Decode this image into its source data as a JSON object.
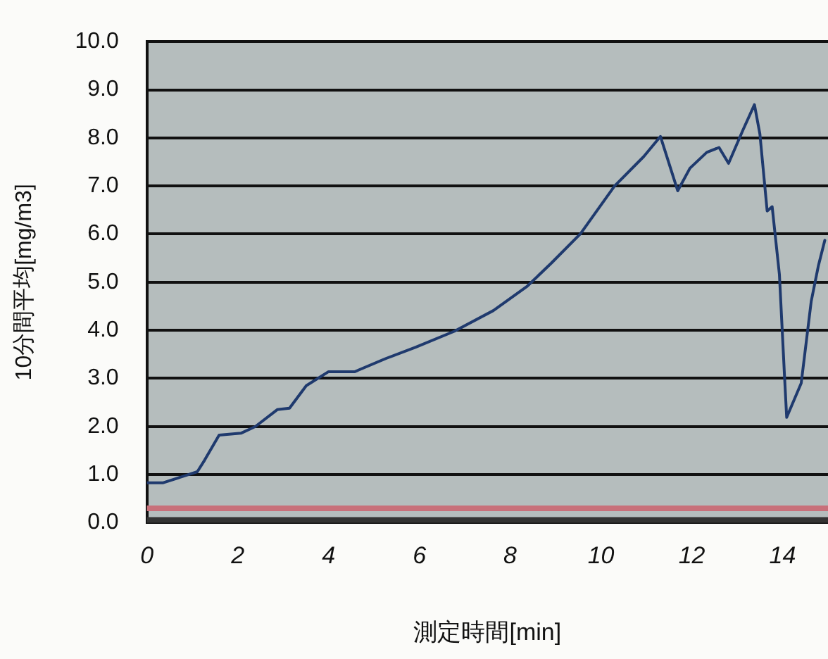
{
  "chart_data": {
    "type": "line",
    "xlabel": "測定時間[min]",
    "ylabel": "10分間平均[mg/m3]",
    "x": [
      0,
      0.36,
      1.11,
      1.27,
      1.59,
      2.07,
      2.39,
      2.87,
      3.14,
      3.51,
      4.0,
      4.58,
      5.28,
      5.92,
      6.77,
      7.63,
      8.38,
      8.91,
      9.55,
      10.3,
      10.94,
      11.31,
      11.69,
      11.96,
      12.33,
      12.6,
      12.81,
      13.13,
      13.38,
      13.5,
      13.66,
      13.77,
      13.93,
      14.04,
      14.09,
      14.41,
      14.63,
      14.79,
      14.93
    ],
    "series": [
      {
        "color": "#1f3a6e",
        "values": [
          0.83,
          0.83,
          1.06,
          1.3,
          1.82,
          1.86,
          2.0,
          2.35,
          2.38,
          2.85,
          3.14,
          3.14,
          3.42,
          3.65,
          3.98,
          4.41,
          4.92,
          5.4,
          6.01,
          7.0,
          7.61,
          8.03,
          6.9,
          7.37,
          7.7,
          7.8,
          7.47,
          8.17,
          8.69,
          8.08,
          6.48,
          6.57,
          5.16,
          3.09,
          2.19,
          2.9,
          4.6,
          5.35,
          5.87
        ]
      }
    ],
    "xlim": [
      0,
      15
    ],
    "xticks": [
      0,
      2,
      4,
      6,
      8,
      10,
      12,
      14
    ],
    "ylim": [
      0,
      10
    ],
    "yticks": [
      {
        "value": 0,
        "label": "0.0"
      },
      {
        "value": 1,
        "label": "1.0"
      },
      {
        "value": 2,
        "label": "2.0"
      },
      {
        "value": 3,
        "label": "3.0"
      },
      {
        "value": 4,
        "label": "4.0"
      },
      {
        "value": 5,
        "label": "5.0"
      },
      {
        "value": 6,
        "label": "6.0"
      },
      {
        "value": 7,
        "label": "7.0"
      },
      {
        "value": 8,
        "label": "8.0"
      },
      {
        "value": 9,
        "label": "9.0"
      },
      {
        "value": 10,
        "label": "10.0"
      }
    ],
    "ref_lines": [
      {
        "axis": "y",
        "value": 0.3,
        "color": "#c8707a"
      }
    ],
    "grid": "y",
    "legend": false,
    "marker": "none",
    "line_style": "solid"
  }
}
